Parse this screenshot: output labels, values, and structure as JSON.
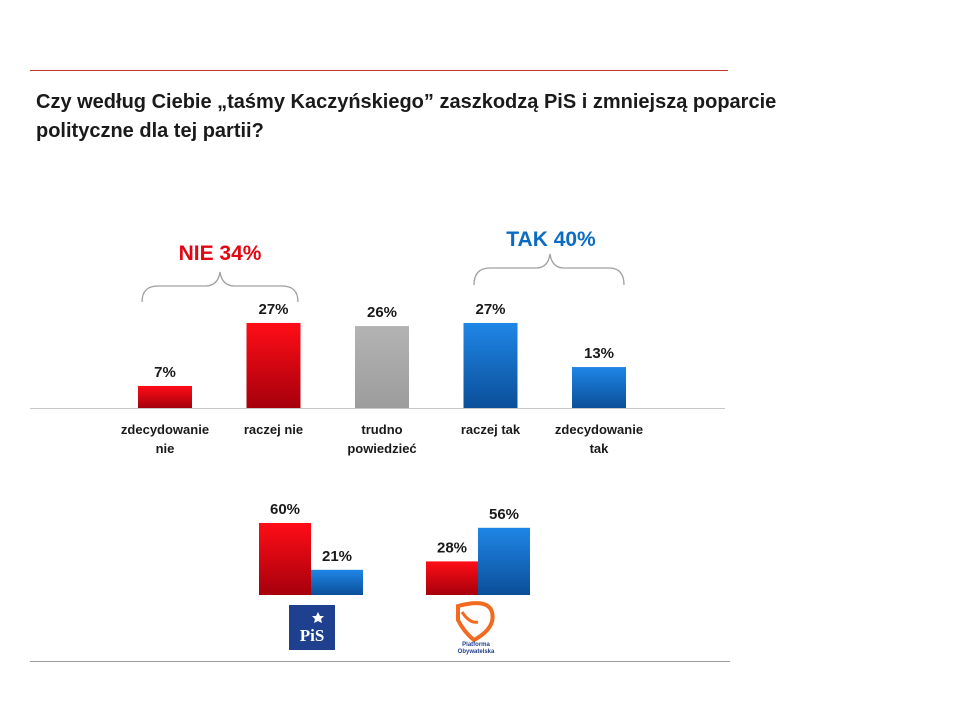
{
  "title": "Czy według Ciebie „taśmy Kaczyńskiego” zaszkodzą PiS i zmniejszą poparcie polityczne dla tej partii?",
  "colors": {
    "red": "#e30613",
    "blue": "#0b6cc4",
    "gray": "#a6a6a6",
    "accent_red": "#e30613",
    "accent_blue": "#0b6cc4"
  },
  "groups": {
    "nie": {
      "label": "NIE 34%"
    },
    "tak": {
      "label": "TAK 40%"
    }
  },
  "parties": {
    "pis": {
      "logo_text": "PiS"
    },
    "po": {
      "logo_text": "Platforma Obywatelska"
    }
  },
  "chart_data": [
    {
      "type": "bar",
      "title": "",
      "categories": [
        "zdecydowanie nie",
        "raczej nie",
        "trudno powiedzieć",
        "raczej tak",
        "zdecydowanie tak"
      ],
      "category_lines": [
        [
          "zdecydowanie",
          "nie"
        ],
        [
          "raczej nie"
        ],
        [
          "trudno",
          "powiedzieć"
        ],
        [
          "raczej tak"
        ],
        [
          "zdecydowanie",
          "tak"
        ]
      ],
      "values": [
        7,
        27,
        26,
        27,
        13
      ],
      "value_labels": [
        "7%",
        "27%",
        "26%",
        "27%",
        "13%"
      ],
      "bar_colors": [
        "red",
        "red",
        "gray",
        "blue",
        "blue"
      ],
      "unit": "%",
      "grid": false,
      "legend": "none"
    },
    {
      "type": "bar",
      "title": "",
      "categories": [
        "PiS",
        "Platforma Obywatelska"
      ],
      "series": [
        {
          "color": "red",
          "values": [
            60,
            28
          ],
          "value_labels": [
            "60%",
            "28%"
          ]
        },
        {
          "color": "blue",
          "values": [
            21,
            56
          ],
          "value_labels": [
            "21%",
            "56%"
          ]
        }
      ],
      "unit": "%",
      "grid": false,
      "legend": "none"
    }
  ]
}
